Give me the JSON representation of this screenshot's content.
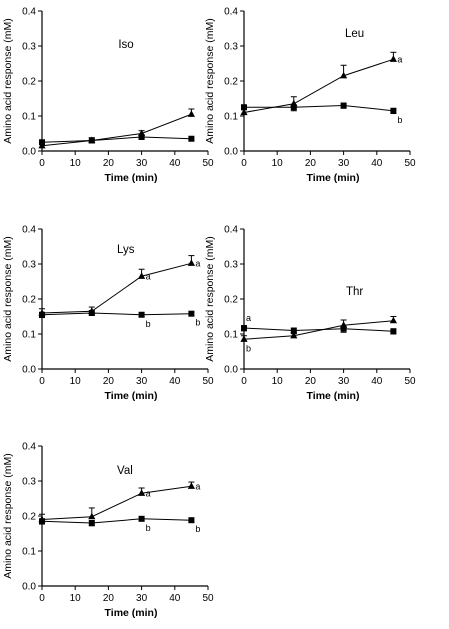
{
  "chart_data": [
    {
      "type": "line",
      "title": "Iso",
      "xlabel": "Time (min)",
      "ylabel": "Amino acid response (mM)",
      "xlim": [
        0,
        50
      ],
      "ylim": [
        0,
        0.4
      ],
      "xticks": [
        "0",
        "10",
        "20",
        "30",
        "40",
        "50"
      ],
      "yticks": [
        "0.0",
        "0.1",
        "0.2",
        "0.3",
        "0.4"
      ],
      "series": [
        {
          "marker": "triangle",
          "x": [
            0,
            15,
            30,
            45
          ],
          "y": [
            0.015,
            0.03,
            0.05,
            0.105
          ],
          "err": [
            0.005,
            0.008,
            0.008,
            0.015
          ],
          "labels": [
            "",
            "",
            "",
            ""
          ]
        },
        {
          "marker": "square",
          "x": [
            0,
            15,
            30,
            45
          ],
          "y": [
            0.025,
            0.03,
            0.04,
            0.035
          ],
          "err": [
            0.005,
            0.005,
            0.005,
            0.004
          ],
          "labels": [
            "",
            "",
            "",
            ""
          ]
        }
      ]
    },
    {
      "type": "line",
      "title": "Leu",
      "xlabel": "Time (min)",
      "ylabel": "Amino acid response (mM)",
      "xlim": [
        0,
        50
      ],
      "ylim": [
        0,
        0.4
      ],
      "xticks": [
        "0",
        "10",
        "20",
        "30",
        "40",
        "50"
      ],
      "yticks": [
        "0.0",
        "0.1",
        "0.2",
        "0.3",
        "0.4"
      ],
      "series": [
        {
          "marker": "triangle",
          "x": [
            0,
            15,
            30,
            45
          ],
          "y": [
            0.11,
            0.135,
            0.215,
            0.262
          ],
          "err": [
            0.008,
            0.02,
            0.03,
            0.02
          ],
          "labels": [
            "",
            "",
            "",
            "a"
          ]
        },
        {
          "marker": "square",
          "x": [
            0,
            15,
            30,
            45
          ],
          "y": [
            0.125,
            0.125,
            0.13,
            0.115
          ],
          "err": [
            0.005,
            0.01,
            0.008,
            0.008
          ],
          "labels": [
            "",
            "",
            "",
            "b"
          ]
        }
      ]
    },
    {
      "type": "line",
      "title": "Lys",
      "xlabel": "Time (min)",
      "ylabel": "Amino acid response (mM)",
      "xlim": [
        0,
        50
      ],
      "ylim": [
        0,
        0.4
      ],
      "xticks": [
        "0",
        "10",
        "20",
        "30",
        "40",
        "50"
      ],
      "yticks": [
        "0.0",
        "0.1",
        "0.2",
        "0.3",
        "0.4"
      ],
      "series": [
        {
          "marker": "triangle",
          "x": [
            0,
            15,
            30,
            45
          ],
          "y": [
            0.16,
            0.165,
            0.265,
            0.302
          ],
          "err": [
            0.012,
            0.012,
            0.02,
            0.022
          ],
          "labels": [
            "",
            "",
            "a",
            "a"
          ]
        },
        {
          "marker": "square",
          "x": [
            0,
            15,
            30,
            45
          ],
          "y": [
            0.155,
            0.16,
            0.155,
            0.158
          ],
          "err": [
            0.008,
            0.006,
            0.006,
            0.006
          ],
          "labels": [
            "",
            "",
            "b",
            "b"
          ]
        }
      ]
    },
    {
      "type": "line",
      "title": "Thr",
      "xlabel": "Time (min)",
      "ylabel": "Amino acid response (mM)",
      "xlim": [
        0,
        50
      ],
      "ylim": [
        0,
        0.4
      ],
      "xticks": [
        "0",
        "10",
        "20",
        "30",
        "40",
        "50"
      ],
      "yticks": [
        "0.0",
        "0.1",
        "0.2",
        "0.3",
        "0.4"
      ],
      "series": [
        {
          "marker": "triangle",
          "x": [
            0,
            15,
            30,
            45
          ],
          "y": [
            0.085,
            0.095,
            0.125,
            0.138
          ],
          "err": [
            0.01,
            0.006,
            0.015,
            0.012
          ],
          "labels": [
            "b",
            "",
            "",
            ""
          ]
        },
        {
          "marker": "square",
          "x": [
            0,
            15,
            30,
            45
          ],
          "y": [
            0.117,
            0.11,
            0.115,
            0.108
          ],
          "err": [
            0.008,
            0.006,
            0.01,
            0.008
          ],
          "labels": [
            "a",
            "",
            "",
            ""
          ]
        }
      ]
    },
    {
      "type": "line",
      "title": "Val",
      "xlabel": "Time (min)",
      "ylabel": "Amino acid response (mM)",
      "xlim": [
        0,
        50
      ],
      "ylim": [
        0,
        0.4
      ],
      "xticks": [
        "0",
        "10",
        "20",
        "30",
        "40",
        "50"
      ],
      "yticks": [
        "0.0",
        "0.1",
        "0.2",
        "0.3",
        "0.4"
      ],
      "series": [
        {
          "marker": "triangle",
          "x": [
            0,
            15,
            30,
            45
          ],
          "y": [
            0.19,
            0.198,
            0.265,
            0.285
          ],
          "err": [
            0.015,
            0.025,
            0.015,
            0.012
          ],
          "labels": [
            "",
            "",
            "a",
            "a"
          ]
        },
        {
          "marker": "square",
          "x": [
            0,
            15,
            30,
            45
          ],
          "y": [
            0.185,
            0.18,
            0.192,
            0.188
          ],
          "err": [
            0.008,
            0.008,
            0.006,
            0.006
          ],
          "labels": [
            "",
            "",
            "b",
            "b"
          ]
        }
      ]
    }
  ]
}
